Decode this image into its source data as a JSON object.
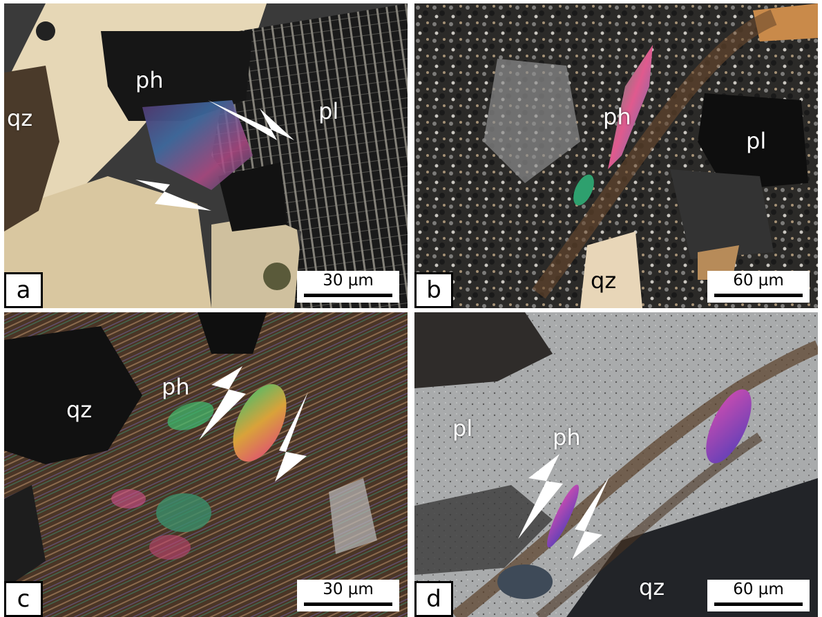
{
  "panels": {
    "a": {
      "letter": "a",
      "scale": "30 µm",
      "labels": {
        "qz": "qz",
        "ph": "ph",
        "pl": "pl"
      }
    },
    "b": {
      "letter": "b",
      "scale": "60 µm",
      "labels": {
        "ph": "ph",
        "pl": "pl",
        "qz": "qz"
      }
    },
    "c": {
      "letter": "c",
      "scale": "30 µm",
      "labels": {
        "ph": "ph",
        "qz": "qz"
      }
    },
    "d": {
      "letter": "d",
      "scale": "60 µm",
      "labels": {
        "pl": "pl",
        "ph": "ph",
        "qz": "qz"
      }
    }
  },
  "colors": {
    "background": "#ffffff",
    "label": "#ffffff",
    "arrow": "#ffffff",
    "frame": "#000000"
  }
}
